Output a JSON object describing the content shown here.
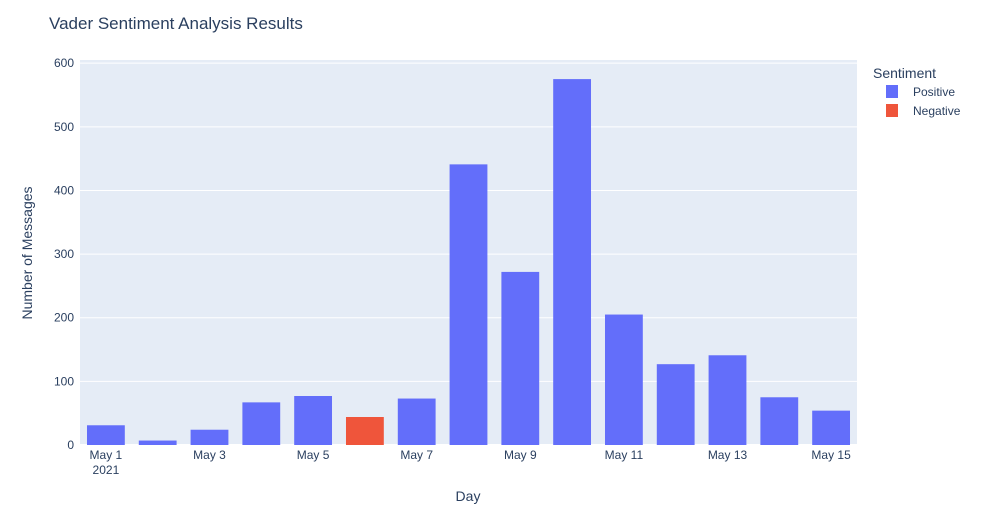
{
  "chart_data": {
    "type": "bar",
    "title": "Vader Sentiment Analysis Results",
    "xlabel": "Day",
    "ylabel": "Number of Messages",
    "ylim": [
      0,
      605
    ],
    "yticks": [
      0,
      100,
      200,
      300,
      400,
      500,
      600
    ],
    "xticks": [
      {
        "day": 1,
        "label": "May 1",
        "sublabel": "2021"
      },
      {
        "day": 3,
        "label": "May 3"
      },
      {
        "day": 5,
        "label": "May 5"
      },
      {
        "day": 7,
        "label": "May 7"
      },
      {
        "day": 9,
        "label": "May 9"
      },
      {
        "day": 11,
        "label": "May 11"
      },
      {
        "day": 13,
        "label": "May 13"
      },
      {
        "day": 15,
        "label": "May 15"
      }
    ],
    "x": [
      "2021-05-01",
      "2021-05-02",
      "2021-05-03",
      "2021-05-04",
      "2021-05-05",
      "2021-05-06",
      "2021-05-07",
      "2021-05-08",
      "2021-05-09",
      "2021-05-10",
      "2021-05-11",
      "2021-05-12",
      "2021-05-13",
      "2021-05-14",
      "2021-05-15"
    ],
    "values": [
      31,
      7,
      24,
      67,
      77,
      44,
      73,
      441,
      272,
      575,
      205,
      127,
      141,
      75,
      54
    ],
    "sentiment": [
      "Positive",
      "Positive",
      "Positive",
      "Positive",
      "Positive",
      "Negative",
      "Positive",
      "Positive",
      "Positive",
      "Positive",
      "Positive",
      "Positive",
      "Positive",
      "Positive",
      "Positive"
    ],
    "legend": {
      "title": "Sentiment",
      "position": "right",
      "entries": [
        {
          "name": "Positive",
          "color": "#636efa"
        },
        {
          "name": "Negative",
          "color": "#ef553b"
        }
      ]
    },
    "grid": true,
    "background": "#e5ecf6"
  }
}
